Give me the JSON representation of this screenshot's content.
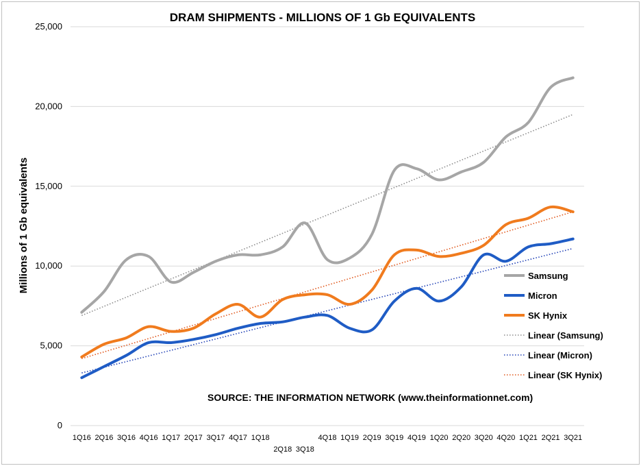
{
  "chart_data": {
    "type": "line",
    "title": "DRAM SHIPMENTS - MILLIONS OF 1 Gb EQUIVALENTS",
    "xlabel": "",
    "ylabel": "Millions of 1 Gb equivalents",
    "ylim": [
      0,
      25000
    ],
    "yticks": [
      0,
      5000,
      10000,
      15000,
      20000,
      25000
    ],
    "ytick_labels": [
      "0",
      "5,000",
      "10,000",
      "15,000",
      "20,000",
      "25,000"
    ],
    "grid": true,
    "legend_position": "right",
    "categories": [
      "1Q16",
      "2Q16",
      "3Q16",
      "4Q16",
      "1Q17",
      "2Q17",
      "3Q17",
      "4Q17",
      "1Q18",
      "2Q18",
      "3Q18",
      "4Q18",
      "1Q19",
      "2Q19",
      "3Q19",
      "4Q19",
      "1Q20",
      "2Q20",
      "3Q20",
      "4Q20",
      "1Q21",
      "2Q21",
      "3Q21"
    ],
    "series": [
      {
        "name": "Samsung",
        "color": "#a6a6a6",
        "values": [
          7100,
          8400,
          10400,
          10600,
          9000,
          9600,
          10300,
          10700,
          10700,
          11200,
          12700,
          10400,
          10500,
          12000,
          16000,
          16100,
          15400,
          15900,
          16500,
          18100,
          19000,
          21200,
          21800
        ]
      },
      {
        "name": "Micron",
        "color": "#1f5cc5",
        "values": [
          3000,
          3700,
          4400,
          5200,
          5200,
          5400,
          5700,
          6100,
          6400,
          6500,
          6800,
          6900,
          6100,
          6000,
          7800,
          8600,
          7800,
          8700,
          10700,
          10300,
          11200,
          11400,
          11700
        ]
      },
      {
        "name": "SK Hynix",
        "color": "#f07b1e",
        "values": [
          4300,
          5100,
          5500,
          6200,
          5900,
          6100,
          7000,
          7600,
          6800,
          7900,
          8200,
          8200,
          7600,
          8500,
          10700,
          11000,
          10600,
          10800,
          11300,
          12600,
          13000,
          13700,
          13400
        ]
      }
    ],
    "trendlines": [
      {
        "name": "Linear (Samsung)",
        "color": "#8c8c8c",
        "start": 6900,
        "end": 19500
      },
      {
        "name": "Linear (Micron)",
        "color": "#1f3fb5",
        "start": 3300,
        "end": 11100
      },
      {
        "name": "Linear (SK Hynix)",
        "color": "#e0561a",
        "start": 4200,
        "end": 13400
      }
    ],
    "annotation": "SOURCE: THE INFORMATION NETWORK (www.theinformationnet.com)"
  }
}
